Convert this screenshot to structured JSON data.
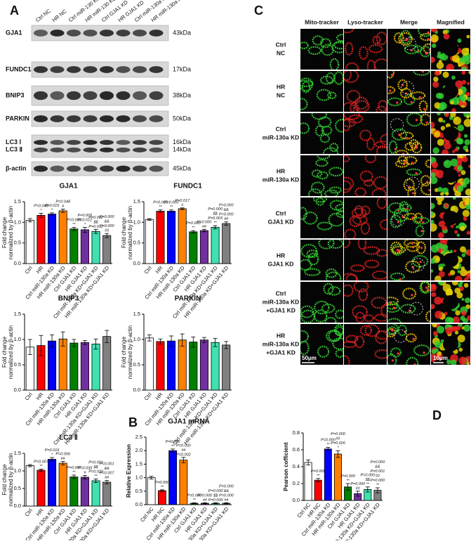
{
  "panel_labels": [
    "A",
    "B",
    "C",
    "D"
  ],
  "blot": {
    "lanes": [
      "Ctrl NC",
      "HR NC",
      "Ctrl miR-130 KD",
      "HR miR-130 KD",
      "Ctrl GJA1 KD",
      "HR GJA1 KD",
      "Ctrl miR-130a KD+GJA1 KD",
      "HR miR-130a KD+GJA1 KD"
    ],
    "rows": [
      {
        "protein": [
          "GJA1"
        ],
        "kda": [
          "43kDa"
        ]
      },
      {
        "protein": [
          "FUNDC1"
        ],
        "kda": [
          "17kDa"
        ]
      },
      {
        "protein": [
          "BNIP3"
        ],
        "kda": [
          "38kDa"
        ]
      },
      {
        "protein": [
          "PARKIN"
        ],
        "kda": [
          "50kDa"
        ]
      },
      {
        "protein": [
          "LC3 Ⅰ",
          "LC3 Ⅱ"
        ],
        "kda": [
          "16kDa",
          "14kDa"
        ]
      },
      {
        "protein": [
          "β-actin"
        ],
        "kda": [
          "45kDa"
        ]
      }
    ]
  },
  "microscopy": {
    "columns": [
      "Mito-tracker",
      "Lyso-tracker",
      "Merge",
      "Magnified"
    ],
    "rows": [
      [
        "Ctrl",
        "NC"
      ],
      [
        "HR",
        "NC"
      ],
      [
        "Ctrl",
        "miR-130a KD"
      ],
      [
        "HR",
        "miR-130a KD"
      ],
      [
        "Ctrl",
        "GJA1 KD"
      ],
      [
        "HR",
        "GJA1 KD"
      ],
      [
        "Ctrl",
        "miR-130a KD",
        "+GJA1 KD"
      ],
      [
        "HR",
        "miR-130a KD",
        "+GJA1 KD"
      ]
    ],
    "scale_bars": [
      "50μm",
      "10μm"
    ]
  },
  "chart_data": [
    {
      "type": "bar",
      "title": "GJA1",
      "y_label": [
        "Fold change",
        "normalized by β-actin"
      ],
      "categories": [
        "Ctrl",
        "HR",
        "Ctrl miR-130a KD",
        "HR miR-130a KD",
        "Ctrl GJA1 KD",
        "HR GJA1 KD",
        "Ctrl miR-130a KD+GJA1 KD",
        "HR miR-130a KD+GJA1 KD"
      ],
      "values": [
        1.05,
        1.17,
        1.2,
        1.28,
        0.84,
        0.82,
        0.78,
        0.68
      ],
      "errors": [
        0.04,
        0.05,
        0.03,
        0.04,
        0.04,
        0.06,
        0.05,
        0.05
      ],
      "colors": [
        "#ffffff",
        "#ff0000",
        "#0000ff",
        "#ff8000",
        "#008000",
        "#7030a0",
        "#40e0b0",
        "#808080"
      ],
      "annotations": [
        [],
        [
          "P=0.048",
          "*"
        ],
        [
          "P=0.015",
          "*"
        ],
        [
          "P=0.048",
          "#"
        ],
        [
          "P=0.004",
          "**"
        ],
        [
          "P=0.005",
          "P=0.012",
          "*"
        ],
        [
          "P=0.002",
          "$$",
          "P=0.012"
        ],
        [
          "P=0.000",
          "&&",
          "P=0.000",
          "##"
        ]
      ],
      "ylim": [
        0,
        1.5
      ],
      "yticks": [
        {
          "value": 0,
          "label": "0.0"
        },
        0.5,
        {
          "value": 1,
          "label": "1.0"
        },
        1.5
      ]
    },
    {
      "type": "bar",
      "title": "FUNDC1",
      "y_label": [
        "Fold change",
        "normalized by β-actin"
      ],
      "categories": [
        "Ctrl",
        "HR",
        "Ctrl miR-130a KD",
        "HR miR-130a KD",
        "Ctrl GJA1 KD",
        "HR GJA1 KD",
        "Ctrl miR-130a KD+GJA1 KD",
        "HR miR-130a KD+GJA1 KD"
      ],
      "values": [
        1.07,
        1.27,
        1.27,
        1.33,
        0.77,
        0.8,
        0.88,
        0.97
      ],
      "errors": [
        0.02,
        0.03,
        0.03,
        0.02,
        0.03,
        0.03,
        0.04,
        0.04
      ],
      "colors": [
        "#ffffff",
        "#ff0000",
        "#0000ff",
        "#ff8000",
        "#008000",
        "#7030a0",
        "#40e0b0",
        "#808080"
      ],
      "annotations": [
        [],
        [
          "P=0.003",
          "**"
        ],
        [
          "P=0.000",
          "**"
        ],
        [
          "P=0.017",
          "#"
        ],
        [
          "P=0.000",
          "**"
        ],
        [
          "P=0.000",
          "##"
        ],
        [
          "P=0.000",
          "$$",
          "P=0.003",
          "**"
        ],
        [
          "P=0.000",
          "&&",
          "P=0.000",
          "##"
        ]
      ],
      "ylim": [
        0,
        1.5
      ],
      "yticks": [
        {
          "value": 0,
          "label": "0.0"
        },
        0.5,
        {
          "value": 1,
          "label": "1.0"
        },
        1.5
      ]
    },
    {
      "type": "bar",
      "title": "BNIP3",
      "y_label": [
        "Fold change",
        "normalized by β-actin"
      ],
      "categories": [
        "Ctrl",
        "HR",
        "Ctrl miR-130a KD",
        "HR miR-130a KD",
        "Ctrl GJA1 KD",
        "HR GJA1 KD",
        "Ctrl miR-130a KD+GJA1 KD",
        "HR miR-130a KD+GJA1 KD"
      ],
      "values": [
        0.85,
        0.88,
        0.97,
        1.01,
        0.93,
        0.94,
        0.91,
        1.06
      ],
      "errors": [
        0.15,
        0.2,
        0.12,
        0.14,
        0.07,
        0.04,
        0.1,
        0.12
      ],
      "colors": [
        "#ffffff",
        "#ff0000",
        "#0000ff",
        "#ff8000",
        "#008000",
        "#7030a0",
        "#40e0b0",
        "#808080"
      ],
      "ylim": [
        0,
        1.5
      ],
      "yticks": [
        {
          "value": 0,
          "label": "0.0"
        },
        0.5,
        {
          "value": 1,
          "label": "1.0"
        },
        1.5
      ]
    },
    {
      "type": "bar",
      "title": "PARKIN",
      "y_label": [
        "Fold change",
        "normalized by β-actin"
      ],
      "categories": [
        "Ctrl",
        "HR",
        "Ctrl miR-130a KD",
        "HR miR-130a KD",
        "Ctrl GJA1 KD",
        "HR GJA1 KD",
        "Ctrl miR-130a KD+GJA1 KD",
        "HR miR-130a KD+GJA1 KD"
      ],
      "values": [
        1.03,
        0.96,
        0.97,
        0.99,
        0.95,
        0.99,
        0.94,
        0.89
      ],
      "errors": [
        0.06,
        0.05,
        0.1,
        0.12,
        0.1,
        0.05,
        0.08,
        0.07
      ],
      "colors": [
        "#ffffff",
        "#ff0000",
        "#0000ff",
        "#ff8000",
        "#008000",
        "#7030a0",
        "#40e0b0",
        "#808080"
      ],
      "ylim": [
        0,
        1.5
      ],
      "yticks": [
        {
          "value": 0,
          "label": "0.0"
        },
        0.5,
        {
          "value": 1,
          "label": "1.0"
        },
        1.5
      ]
    },
    {
      "type": "bar",
      "title": "LC3 Ⅱ",
      "y_label": [
        "Fold change",
        "normalized by β-actin"
      ],
      "categories": [
        "Ctrl",
        "HR",
        "Ctrl miR-130a KD",
        "HR miR-130a KD",
        "Ctrl GJA1 KD",
        "HR GJA1 KD",
        "Ctrl miR-130a KD+GJA1 KD",
        "HR miR-130a KD+GJA1 KD"
      ],
      "values": [
        1.15,
        1.02,
        1.33,
        1.22,
        0.83,
        0.82,
        0.72,
        0.68
      ],
      "errors": [
        0.03,
        0.03,
        0.05,
        0.05,
        0.05,
        0.05,
        0.05,
        0.05
      ],
      "colors": [
        "#ffffff",
        "#ff0000",
        "#0000ff",
        "#ff8000",
        "#008000",
        "#7030a0",
        "#40e0b0",
        "#808080"
      ],
      "annotations": [
        [],
        [
          "P=0.007",
          "**"
        ],
        [
          "P=0.016",
          "*"
        ],
        [
          "P=0.006",
          "##"
        ],
        [
          "P=0.007",
          "**"
        ],
        [
          "P=0.035",
          "#"
        ],
        [
          "P=0.001",
          "$$",
          "P=0.022",
          "**"
        ],
        [
          "P=0.001",
          "&&",
          "P=0.007",
          "##"
        ]
      ],
      "ylim": [
        0,
        1.5
      ],
      "yticks": [
        {
          "value": 0,
          "label": "0.0"
        },
        0.5,
        {
          "value": 1,
          "label": "1.0"
        },
        1.5
      ]
    },
    {
      "type": "bar",
      "title": "GJA1 mRNA",
      "y_label": "Relative Expression",
      "categories": [
        "Ctrl NC",
        "HR NC",
        "Ctrl miR-130a KD",
        "HR miR-130a KD",
        "Ctrl GJA1 KD",
        "HR GJA1 KD",
        "Ctrl miR-130a KD+GJA1 KD",
        "HR miR-130a KD+GJA1 KD"
      ],
      "values": [
        1.0,
        0.52,
        2.0,
        1.65,
        0.05,
        0.05,
        0.05,
        0.05
      ],
      "errors": [
        0.05,
        0.03,
        0.06,
        0.1,
        0.02,
        0.02,
        0.02,
        0.02
      ],
      "colors": [
        "#ffffff",
        "#ff0000",
        "#0000ff",
        "#ff8000",
        "#008000",
        "#7030a0",
        "#40e0b0",
        "#808080"
      ],
      "annotations": [
        [],
        [
          "P=0.000",
          "**"
        ],
        [
          "P=0.000",
          "**"
        ],
        [
          "P=0.000",
          "##",
          "P=0.002"
        ],
        [
          "P=0.000",
          "**"
        ],
        [
          "P=0.000",
          "##"
        ],
        [
          "P=0.000",
          "$$",
          "P=0.000"
        ],
        [
          "P=0.000",
          "&&",
          "P=0.000",
          "##"
        ]
      ],
      "ylim": [
        0,
        2.5
      ],
      "yticks": [
        {
          "value": 0,
          "label": "0.0"
        },
        0.5,
        {
          "value": 1,
          "label": "1.0"
        },
        1.5,
        {
          "value": 2,
          "label": "2.0"
        },
        2.5
      ]
    },
    {
      "type": "bar",
      "y_label": "Pearson cofficient",
      "categories": [
        "Ctrl NC",
        "HR NC",
        "Ctrl miR-130a KD",
        "HR miR-130a KD",
        "Ctrl GJA1 KD",
        "HR GJA1 KD",
        "Ctrl miR-130a KD+GJA1 KD",
        "HR miR-130a KD+GJA1 KD"
      ],
      "values": [
        0.45,
        0.24,
        0.61,
        0.55,
        0.16,
        0.08,
        0.13,
        0.12
      ],
      "errors": [
        0.03,
        0.02,
        0.02,
        0.04,
        0.04,
        0.03,
        0.03,
        0.03
      ],
      "colors": [
        "#ffffff",
        "#ff0000",
        "#0000ff",
        "#ff8000",
        "#008000",
        "#7030a0",
        "#40e0b0",
        "#808080"
      ],
      "annotations": [
        [],
        [
          "P=0.000",
          "**"
        ],
        [
          "P=0.000",
          "**"
        ],
        [
          "P=0.000",
          "##",
          "P=0.026",
          "*"
        ],
        [
          "P=0.000",
          "**"
        ],
        [
          "P=0.000",
          "##"
        ],
        [
          "P=0.000",
          "$$",
          "**"
        ],
        [
          "P=0.000",
          "&&",
          "P=0.001",
          "##",
          "P=0.000",
          "**"
        ]
      ],
      "ylim": [
        0,
        0.8
      ],
      "yticks": [
        {
          "value": 0,
          "label": "0.0"
        },
        0.2,
        0.4,
        0.6,
        0.8
      ]
    }
  ]
}
